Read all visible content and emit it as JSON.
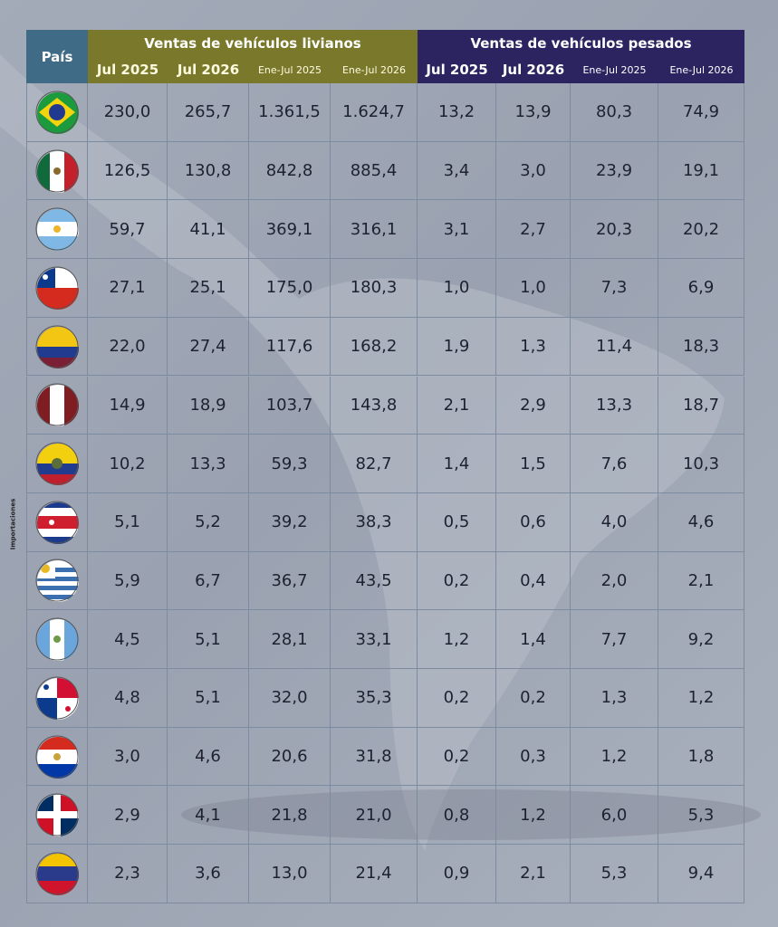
{
  "header": {
    "country": "País",
    "groups": [
      {
        "title": "Ventas de vehículos livianos",
        "columns": [
          "Jul 2025",
          "Jul 2026",
          "Ene-Jul 2025",
          "Ene-Jul 2026"
        ]
      },
      {
        "title": "Ventas de vehículos pesados",
        "columns": [
          "Jul 2025",
          "Jul 2026",
          "Ene-Jul 2025",
          "Ene-Jul 2026"
        ]
      }
    ]
  },
  "side_label": "Importaciones",
  "table": {
    "rows": [
      [
        "230,0",
        "265,7",
        "1.361,5",
        "1.624,7",
        "13,2",
        "13,9",
        "80,3",
        "74,9"
      ],
      [
        "126,5",
        "130,8",
        "842,8",
        "885,4",
        "3,4",
        "3,0",
        "23,9",
        "19,1"
      ],
      [
        "59,7",
        "41,1",
        "369,1",
        "316,1",
        "3,1",
        "2,7",
        "20,3",
        "20,2"
      ],
      [
        "27,1",
        "25,1",
        "175,0",
        "180,3",
        "1,0",
        "1,0",
        "7,3",
        "6,9"
      ],
      [
        "22,0",
        "27,4",
        "117,6",
        "168,2",
        "1,9",
        "1,3",
        "11,4",
        "18,3"
      ],
      [
        "14,9",
        "18,9",
        "103,7",
        "143,8",
        "2,1",
        "2,9",
        "13,3",
        "18,7"
      ],
      [
        "10,2",
        "13,3",
        "59,3",
        "82,7",
        "1,4",
        "1,5",
        "7,6",
        "10,3"
      ],
      [
        "5,1",
        "5,2",
        "39,2",
        "38,3",
        "0,5",
        "0,6",
        "4,0",
        "4,6"
      ],
      [
        "5,9",
        "6,7",
        "36,7",
        "43,5",
        "0,2",
        "0,4",
        "2,0",
        "2,1"
      ],
      [
        "4,5",
        "5,1",
        "28,1",
        "33,1",
        "1,2",
        "1,4",
        "7,7",
        "9,2"
      ],
      [
        "4,8",
        "5,1",
        "32,0",
        "35,3",
        "0,2",
        "0,2",
        "1,3",
        "1,2"
      ],
      [
        "3,0",
        "4,6",
        "20,6",
        "31,8",
        "0,2",
        "0,3",
        "1,2",
        "1,8"
      ],
      [
        "2,9",
        "4,1",
        "21,8",
        "21,0",
        "0,8",
        "1,2",
        "6,0",
        "5,3"
      ],
      [
        "2,3",
        "3,6",
        "13,0",
        "21,4",
        "0,9",
        "2,1",
        "5,3",
        "9,4"
      ]
    ]
  }
}
